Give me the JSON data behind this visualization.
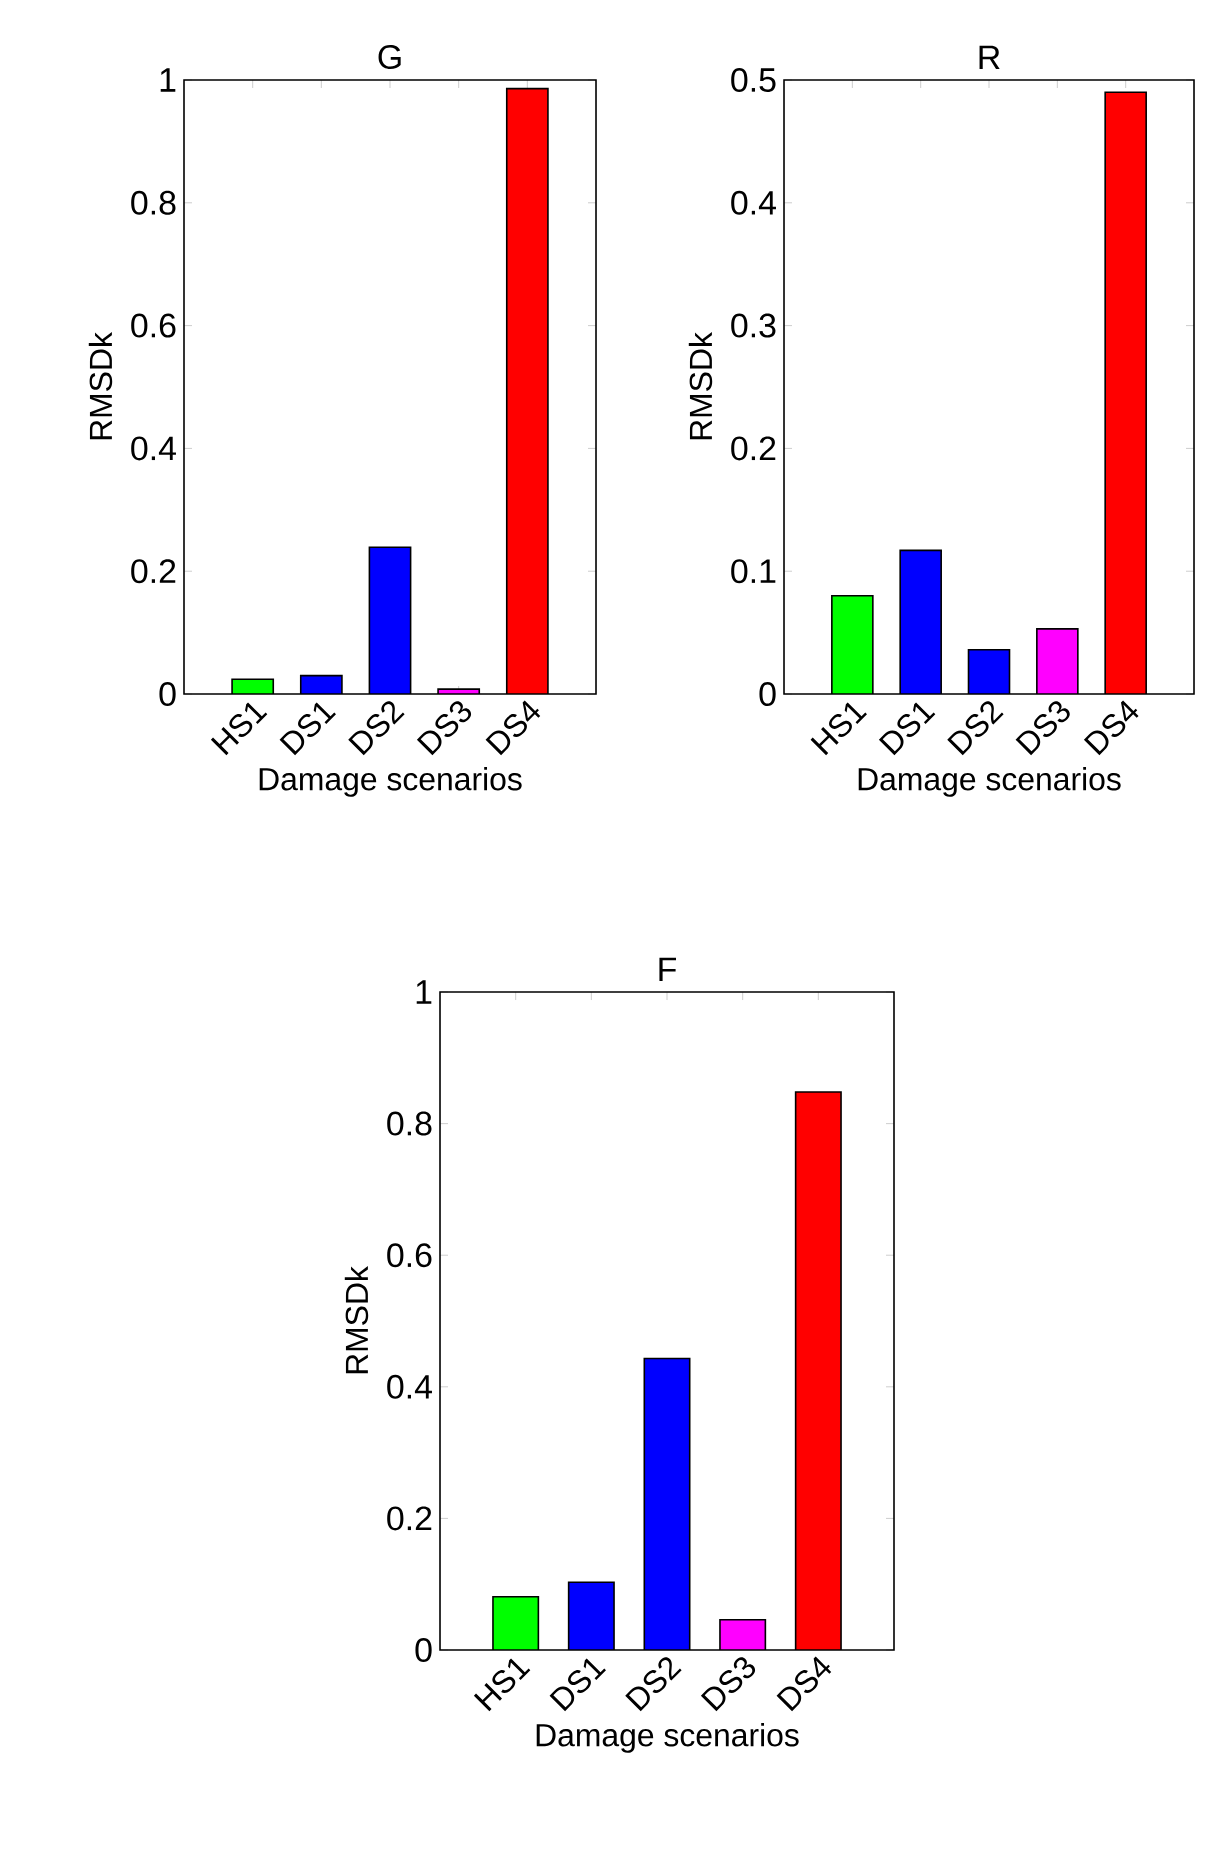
{
  "chart_data": [
    {
      "type": "bar",
      "title": "G",
      "xlabel": "Damage scenarios",
      "ylabel": "RMSDk",
      "categories": [
        "HS1",
        "DS1",
        "DS2",
        "DS3",
        "DS4"
      ],
      "values": [
        0.024,
        0.03,
        0.239,
        0.008,
        0.986
      ],
      "colors": [
        "#00ff00",
        "#0000ff",
        "#0000ff",
        "#ff00ff",
        "#ff0000"
      ],
      "ylim": [
        0,
        1
      ],
      "yticks": [
        0,
        0.2,
        0.4,
        0.6,
        0.8,
        1
      ]
    },
    {
      "type": "bar",
      "title": "R",
      "xlabel": "Damage scenarios",
      "ylabel": "RMSDk",
      "categories": [
        "HS1",
        "DS1",
        "DS2",
        "DS3",
        "DS4"
      ],
      "values": [
        0.08,
        0.117,
        0.036,
        0.053,
        0.49
      ],
      "colors": [
        "#00ff00",
        "#0000ff",
        "#0000ff",
        "#ff00ff",
        "#ff0000"
      ],
      "ylim": [
        0,
        0.5
      ],
      "yticks": [
        0,
        0.1,
        0.2,
        0.3,
        0.4,
        0.5
      ]
    },
    {
      "type": "bar",
      "title": "F",
      "xlabel": "Damage scenarios",
      "ylabel": "RMSDk",
      "categories": [
        "HS1",
        "DS1",
        "DS2",
        "DS3",
        "DS4"
      ],
      "values": [
        0.081,
        0.103,
        0.443,
        0.046,
        0.848
      ],
      "colors": [
        "#00ff00",
        "#0000ff",
        "#0000ff",
        "#ff00ff",
        "#ff0000"
      ],
      "ylim": [
        0,
        1
      ],
      "yticks": [
        0,
        0.2,
        0.4,
        0.6,
        0.8,
        1
      ]
    }
  ]
}
